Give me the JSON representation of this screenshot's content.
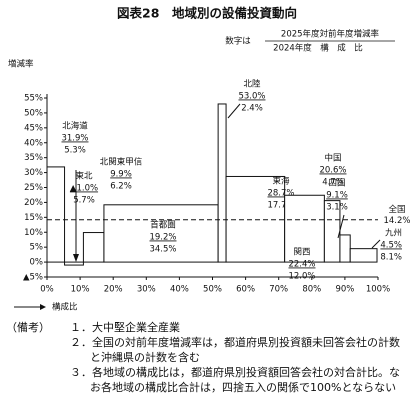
{
  "chart_data": {
    "type": "variwide",
    "title": "図表28　地域別の設備投資動向",
    "legend_prefix": "数字は",
    "legend_numerator": "2025年度対前年度増減率",
    "legend_denominator": "2024年度　構　成　比",
    "y_label": "増減率",
    "x_label": "構成比",
    "categories": [
      "北海道",
      "東北",
      "北関東甲信",
      "首都圏",
      "北陸",
      "東海",
      "関西",
      "中国",
      "四国",
      "九州"
    ],
    "values": [
      31.9,
      -1.0,
      9.9,
      19.2,
      53.0,
      28.7,
      22.4,
      20.6,
      9.1,
      4.5
    ],
    "value_labels": [
      "31.9%",
      "▲1.0%",
      "9.9%",
      "19.2%",
      "53.0%",
      "28.7%",
      "22.4%",
      "20.6%",
      "9.1%",
      "4.5%"
    ],
    "shares": [
      5.3,
      5.7,
      6.2,
      34.5,
      2.4,
      17.7,
      12.0,
      4.7,
      3.1,
      8.1
    ],
    "share_labels": [
      "5.3%",
      "5.7%",
      "6.2%",
      "34.5%",
      "2.4%",
      "17.7%",
      "12.0%",
      "4.7%",
      "3.1%",
      "8.1%"
    ],
    "color": "#ffffff",
    "reference": {
      "name": "全国",
      "value": 14.2,
      "label": "14.2%"
    },
    "ylim": [
      -5,
      55
    ],
    "yticks": [
      {
        "value": -5,
        "label": "▲5%"
      },
      {
        "value": 0,
        "label": "0%"
      },
      {
        "value": 5,
        "label": "5%"
      },
      {
        "value": 10,
        "label": "10%"
      },
      {
        "value": 15,
        "label": "15%"
      },
      {
        "value": 20,
        "label": "20%"
      },
      {
        "value": 25,
        "label": "25%"
      },
      {
        "value": 30,
        "label": "30%"
      },
      {
        "value": 35,
        "label": "35%"
      },
      {
        "value": 40,
        "label": "40%"
      },
      {
        "value": 45,
        "label": "45%"
      },
      {
        "value": 50,
        "label": "50%"
      },
      {
        "value": 55,
        "label": "55%"
      }
    ],
    "xlim": [
      0,
      100
    ],
    "xticks": [
      {
        "value": 0,
        "label": "0%"
      },
      {
        "value": 10,
        "label": "10%"
      },
      {
        "value": 20,
        "label": "20%"
      },
      {
        "value": 30,
        "label": "30%"
      },
      {
        "value": 40,
        "label": "40%"
      },
      {
        "value": 50,
        "label": "50%"
      },
      {
        "value": 60,
        "label": "60%"
      },
      {
        "value": 70,
        "label": "70%"
      },
      {
        "value": 80,
        "label": "80%"
      },
      {
        "value": 90,
        "label": "90%"
      },
      {
        "value": 100,
        "label": "100%"
      }
    ]
  },
  "notes": {
    "label": "（備考）",
    "items": [
      "１．大中堅企業全産業",
      "２．全国の対前年度増減率は，都道府県別投資額未回答会社の計数と沖縄県の計数を含む",
      "３．各地域の構成比は，都道府県別投資額回答会社の対合計比。なお各地域の構成比合計は，四捨五入の関係で100%とならない"
    ]
  }
}
